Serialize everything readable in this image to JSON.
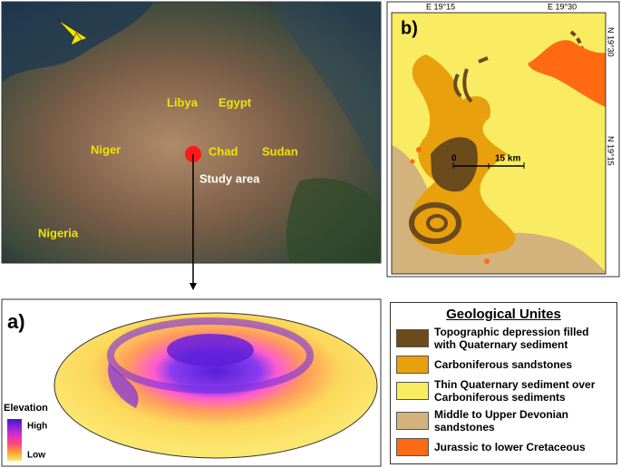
{
  "map_panel": {
    "labels": [
      "Libya",
      "Egypt",
      "Niger",
      "Chad",
      "Sudan",
      "Nigeria"
    ],
    "study_area": "Study area"
  },
  "panel_b": {
    "label": "b)",
    "x_ticks": [
      "E 19°15",
      "E 19°30"
    ],
    "y_ticks": [
      "N 19°30",
      "N 19°15"
    ],
    "scale": [
      "0",
      "15 km"
    ]
  },
  "panel_a": {
    "label": "a)",
    "elevation_legend": {
      "title": "Elevation",
      "high": "High",
      "low": "Low"
    }
  },
  "legend": {
    "title": "Geological Unites",
    "items": [
      {
        "label": "Topographic depression filled with Quaternary sediment",
        "color": "#6b4a1c"
      },
      {
        "label": "Carboniferous sandstones",
        "color": "#e8a00c"
      },
      {
        "label": "Thin Quaternary sediment over Carboniferous sediments",
        "color": "#faec62"
      },
      {
        "label": "Middle to Upper Devonian sandstones",
        "color": "#d4b27c"
      },
      {
        "label": "Jurassic to lower Cretaceous",
        "color": "#ff6a12"
      }
    ]
  }
}
